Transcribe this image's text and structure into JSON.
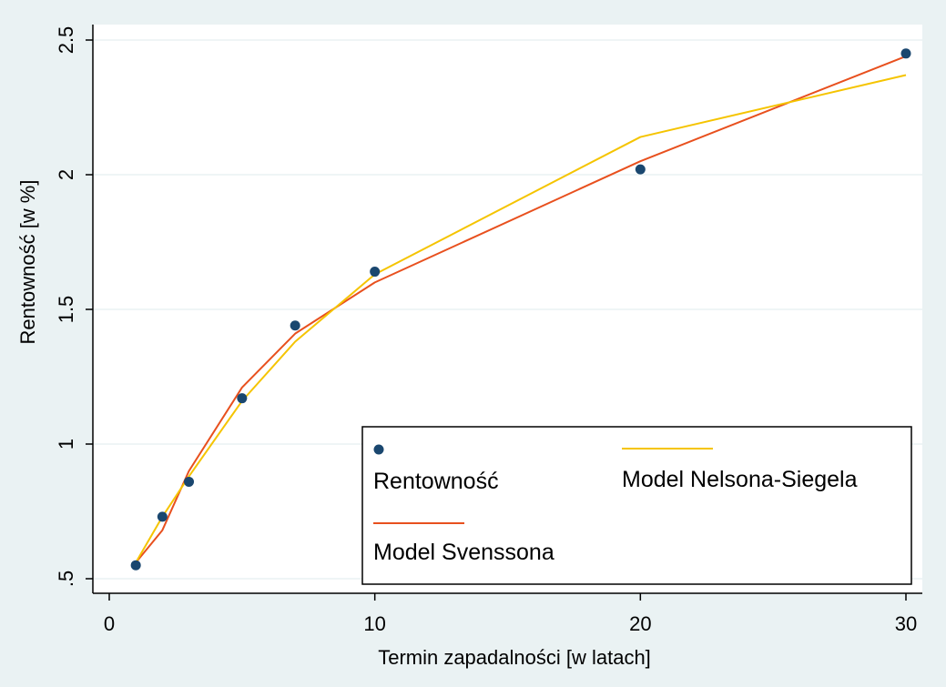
{
  "chart_data": {
    "type": "line",
    "xlabel": "Termin zapadalności [w latach]",
    "ylabel": "Rentowność [w %]",
    "xlim": [
      0,
      30
    ],
    "ylim": [
      0.5,
      2.5
    ],
    "x_ticks": [
      0,
      10,
      20,
      30
    ],
    "x_tick_labels": [
      "0",
      "10",
      "20",
      "30"
    ],
    "y_ticks": [
      0.5,
      1,
      1.5,
      2,
      2.5
    ],
    "y_tick_labels": [
      ".5",
      "1",
      "1.5",
      "2",
      "2.5"
    ],
    "grid": "horizontal",
    "legend_position": "bottom-right",
    "series": [
      {
        "name": "Rentowność",
        "kind": "scatter",
        "color": "#1a476f",
        "x": [
          1,
          2,
          3,
          5,
          7,
          10,
          20,
          30
        ],
        "y": [
          0.55,
          0.73,
          0.86,
          1.17,
          1.44,
          1.64,
          2.02,
          2.45
        ]
      },
      {
        "name": "Model Svenssona",
        "kind": "line",
        "color": "#e8501e",
        "x": [
          1,
          2,
          3,
          5,
          7,
          10,
          20,
          30
        ],
        "y": [
          0.56,
          0.68,
          0.9,
          1.21,
          1.41,
          1.6,
          2.05,
          2.44
        ]
      },
      {
        "name": "Model Nelsona-Siegela",
        "kind": "line",
        "color": "#f5c400",
        "x": [
          1,
          2,
          3,
          5,
          7,
          10,
          20,
          30
        ],
        "y": [
          0.56,
          0.73,
          0.88,
          1.16,
          1.38,
          1.63,
          2.14,
          2.37
        ]
      }
    ]
  }
}
